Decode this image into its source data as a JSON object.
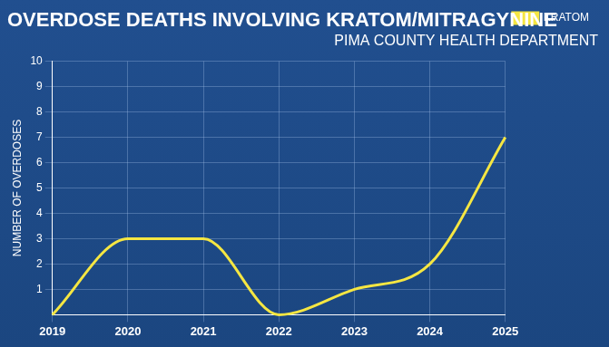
{
  "chart_data": {
    "type": "line",
    "title": "OVERDOSE DEATHS INVOLVING KRATOM/MITRAGYNINE",
    "subtitle": "PIMA COUNTY HEALTH DEPARTMENT",
    "y_label": "NUMBER OF OVERDOSES",
    "categories": [
      "2019",
      "2020",
      "2021",
      "2022",
      "2023",
      "2024",
      "2025"
    ],
    "series": [
      {
        "name": "KRATOM",
        "color": "#f5e642",
        "values": [
          0,
          3,
          3,
          0,
          1,
          2,
          7
        ],
        "marker": "none",
        "line_style": "solid"
      }
    ],
    "ylim": [
      0,
      10
    ],
    "yticks": [
      1,
      2,
      3,
      4,
      5,
      6,
      7,
      8,
      9,
      10
    ],
    "grid": true,
    "legend": "upper right"
  }
}
